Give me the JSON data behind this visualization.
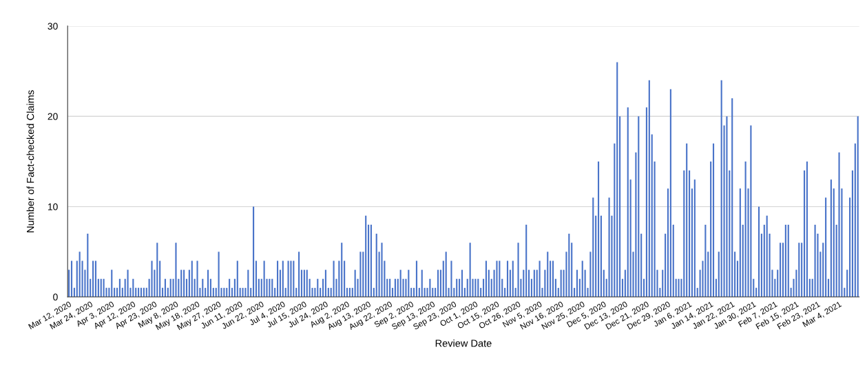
{
  "chart_data": {
    "type": "bar",
    "xlabel": "Review Date",
    "ylabel": "Number of Fact-checked Claims",
    "color": "#4a74c9",
    "ylim": [
      0,
      30
    ],
    "yticks": [
      0,
      10,
      20,
      30
    ],
    "grid": "y",
    "categories": [
      "Mar 12, 2020",
      null,
      null,
      null,
      null,
      null,
      null,
      null,
      "Mar 24, 2020",
      null,
      null,
      null,
      null,
      null,
      null,
      null,
      "Apr 3, 2020",
      null,
      null,
      null,
      null,
      null,
      null,
      null,
      "Apr 12, 2020",
      null,
      null,
      null,
      null,
      null,
      null,
      null,
      "Apr 23, 2020",
      null,
      null,
      null,
      null,
      null,
      null,
      null,
      "May 8, 2020",
      null,
      null,
      null,
      null,
      null,
      null,
      null,
      "May 18, 2020",
      null,
      null,
      null,
      null,
      null,
      null,
      null,
      "May 27, 2020",
      null,
      null,
      null,
      null,
      null,
      null,
      null,
      "Jun 11, 2020",
      null,
      null,
      null,
      null,
      null,
      null,
      null,
      "Jun 22, 2020",
      null,
      null,
      null,
      null,
      null,
      null,
      null,
      "Jul 4, 2020",
      null,
      null,
      null,
      null,
      null,
      null,
      null,
      "Jul 15, 2020",
      null,
      null,
      null,
      null,
      null,
      null,
      null,
      "Jul 24, 2020",
      null,
      null,
      null,
      null,
      null,
      null,
      null,
      "Aug 2, 2020",
      null,
      null,
      null,
      null,
      null,
      null,
      null,
      "Aug 13, 2020",
      null,
      null,
      null,
      null,
      null,
      null,
      null,
      "Aug 22, 2020",
      null,
      null,
      null,
      null,
      null,
      null,
      null,
      "Sep 2, 2020",
      null,
      null,
      null,
      null,
      null,
      null,
      null,
      "Sep 13, 2020",
      null,
      null,
      null,
      null,
      null,
      null,
      null,
      "Sep 23, 2020",
      null,
      null,
      null,
      null,
      null,
      null,
      null,
      "Oct 1, 2020",
      null,
      null,
      null,
      null,
      null,
      null,
      null,
      "Oct 15, 2020",
      null,
      null,
      null,
      null,
      null,
      null,
      null,
      "Oct 26, 2020",
      null,
      null,
      null,
      null,
      null,
      null,
      null,
      "Nov 5, 2020",
      null,
      null,
      null,
      null,
      null,
      null,
      null,
      "Nov 16, 2020",
      null,
      null,
      null,
      null,
      null,
      null,
      null,
      "Nov 25, 2020",
      null,
      null,
      null,
      null,
      null,
      null,
      null,
      "Dec 5, 2020",
      null,
      null,
      null,
      null,
      null,
      null,
      null,
      "Dec 13, 2020",
      null,
      null,
      null,
      null,
      null,
      null,
      null,
      "Dec 21, 2020",
      null,
      null,
      null,
      null,
      null,
      null,
      null,
      "Dec 29, 2020",
      null,
      null,
      null,
      null,
      null,
      null,
      null,
      "Jan 6, 2021",
      null,
      null,
      null,
      null,
      null,
      null,
      null,
      "Jan 14, 2021",
      null,
      null,
      null,
      null,
      null,
      null,
      null,
      "Jan 22, 2021",
      null,
      null,
      null,
      null,
      null,
      null,
      null,
      "Jan 30, 2021",
      null,
      null,
      null,
      null,
      null,
      null,
      null,
      "Feb 7, 2021",
      null,
      null,
      null,
      null,
      null,
      null,
      null,
      "Feb 15, 2021",
      null,
      null,
      null,
      null,
      null,
      null,
      null,
      "Feb 23, 2021",
      null,
      null,
      null,
      null,
      null,
      null,
      null,
      "Mar 4, 2021",
      null,
      null,
      null,
      null,
      null,
      null,
      null
    ],
    "values": [
      3,
      4,
      1,
      4,
      5,
      4,
      3,
      7,
      2,
      4,
      4,
      2,
      2,
      2,
      1,
      1,
      3,
      1,
      1,
      2,
      1,
      2,
      3,
      1,
      2,
      1,
      1,
      1,
      1,
      1,
      2,
      4,
      3,
      6,
      4,
      1,
      2,
      1,
      2,
      2,
      6,
      2,
      3,
      3,
      2,
      3,
      4,
      2,
      4,
      1,
      2,
      1,
      3,
      2,
      1,
      1,
      5,
      1,
      1,
      1,
      2,
      1,
      2,
      4,
      1,
      1,
      1,
      3,
      1,
      10,
      4,
      2,
      2,
      4,
      2,
      2,
      2,
      1,
      4,
      3,
      4,
      1,
      4,
      4,
      4,
      1,
      5,
      3,
      3,
      3,
      2,
      1,
      1,
      2,
      1,
      2,
      3,
      1,
      1,
      4,
      2,
      4,
      6,
      4,
      1,
      1,
      1,
      3,
      2,
      5,
      5,
      9,
      8,
      8,
      1,
      7,
      5,
      6,
      4,
      2,
      2,
      1,
      2,
      2,
      3,
      2,
      2,
      3,
      1,
      1,
      4,
      1,
      3,
      1,
      1,
      2,
      1,
      1,
      3,
      3,
      4,
      5,
      1,
      4,
      1,
      2,
      2,
      3,
      1,
      2,
      6,
      2,
      2,
      2,
      1,
      2,
      4,
      3,
      2,
      3,
      4,
      4,
      2,
      1,
      4,
      3,
      4,
      1,
      6,
      2,
      3,
      8,
      3,
      2,
      3,
      3,
      4,
      1,
      3,
      5,
      4,
      4,
      2,
      1,
      3,
      3,
      5,
      7,
      6,
      1,
      3,
      2,
      4,
      3,
      1,
      5,
      11,
      9,
      15,
      9,
      3,
      2,
      11,
      9,
      17,
      26,
      20,
      2,
      3,
      21,
      13,
      5,
      16,
      20,
      7,
      2,
      21,
      24,
      18,
      15,
      3,
      1,
      3,
      7,
      12,
      23,
      8,
      2,
      2,
      2,
      14,
      17,
      14,
      12,
      13,
      1,
      3,
      4,
      8,
      5,
      15,
      17,
      2,
      5,
      24,
      19,
      20,
      14,
      22,
      5,
      4,
      12,
      8,
      15,
      12,
      19,
      2,
      1,
      10,
      7,
      8,
      9,
      7,
      3,
      2,
      3,
      6,
      6,
      8,
      8,
      1,
      2,
      3,
      6,
      6,
      14,
      15,
      2,
      2,
      8,
      7,
      5,
      6,
      11,
      2,
      13,
      12,
      8,
      16,
      12,
      1,
      3,
      11,
      14,
      17,
      20
    ]
  }
}
